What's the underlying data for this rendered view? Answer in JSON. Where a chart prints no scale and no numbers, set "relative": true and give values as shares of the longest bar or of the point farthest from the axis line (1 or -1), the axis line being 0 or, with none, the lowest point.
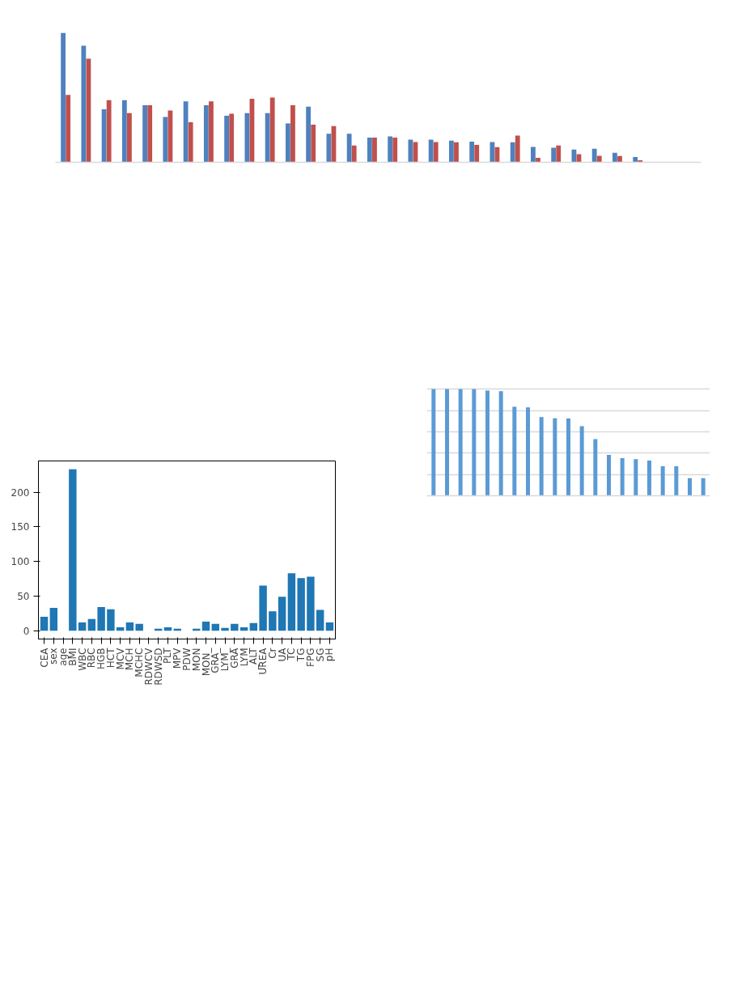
{
  "chart_data": [
    {
      "type": "bar",
      "relative": true,
      "categories": [
        null,
        null,
        null,
        null,
        null,
        null,
        null,
        null,
        null,
        null,
        null,
        null,
        null,
        null,
        null,
        null,
        null,
        null,
        null,
        null,
        null,
        null,
        null,
        null,
        null,
        null,
        null,
        null,
        null
      ],
      "series": [
        {
          "color": "#4f81bd",
          "values": [
            1.0,
            0.9,
            0.41,
            0.48,
            0.44,
            0.35,
            0.47,
            0.44,
            0.36,
            0.38,
            0.38,
            0.3,
            0.43,
            0.22,
            0.22,
            0.19,
            0.2,
            0.175,
            0.175,
            0.167,
            0.16,
            0.156,
            0.154,
            0.119,
            0.113,
            0.098,
            0.104,
            0.073,
            0.04
          ]
        },
        {
          "color": "#c0504d",
          "values": [
            0.52,
            0.8,
            0.48,
            0.38,
            0.44,
            0.4,
            0.31,
            0.47,
            0.375,
            0.49,
            0.5,
            0.44,
            0.29,
            0.28,
            0.13,
            0.19,
            0.19,
            0.156,
            0.156,
            0.154,
            0.135,
            0.117,
            0.206,
            0.035,
            0.129,
            0.0625,
            0.05,
            0.048,
            0.015
          ]
        }
      ]
    },
    {
      "type": "bar",
      "categories": [
        "CEA",
        "sex",
        "age",
        "BMI",
        "WBC",
        "RBC",
        "HGB",
        "HCT",
        "MCV",
        "MCH",
        "MCHC",
        "RDWCV",
        "RDWSD",
        "PLT",
        "MPV",
        "PDW",
        "MON",
        "MON_",
        "GRA_",
        "LYM_",
        "GRA",
        "LYM",
        "_ALT",
        "UREA",
        "Cr",
        "UA",
        "TC",
        "TG",
        "FPG",
        "SG",
        "pH"
      ],
      "values": [
        20,
        33,
        0,
        233,
        12,
        17,
        34,
        31,
        5,
        12,
        10,
        0,
        3,
        5,
        3,
        0,
        3,
        13,
        10,
        4,
        10,
        5,
        11,
        65,
        28,
        49,
        83,
        76,
        78,
        30,
        12
      ],
      "color": "#1f77b4",
      "ylim": [
        -12,
        245
      ],
      "yticks": [
        0,
        50,
        100,
        150,
        200
      ]
    },
    {
      "type": "bar",
      "relative": true,
      "categories": [
        null,
        null,
        null,
        null,
        null,
        null,
        null,
        null,
        null,
        null,
        null,
        null,
        null,
        null,
        null,
        null,
        null,
        null,
        null,
        null,
        null
      ],
      "values": [
        1,
        1,
        1,
        1,
        0.987,
        0.982,
        0.835,
        0.83,
        0.738,
        0.728,
        0.725,
        0.654,
        0.532,
        0.384,
        0.354,
        0.344,
        0.331,
        0.277,
        0.277,
        0.165,
        0.165
      ],
      "color": "#5b9bd5",
      "grid": "y"
    }
  ]
}
